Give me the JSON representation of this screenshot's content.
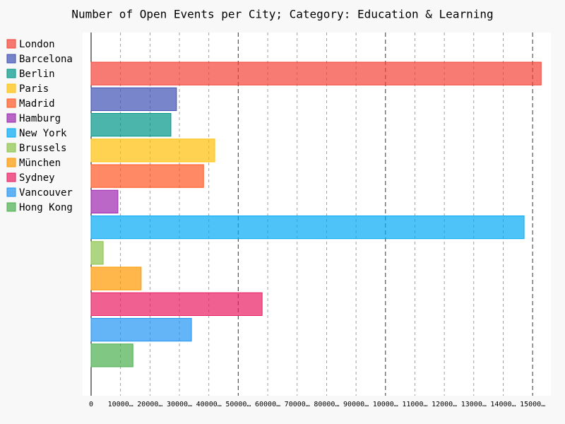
{
  "chart_data": {
    "type": "bar",
    "orientation": "horizontal",
    "title": "Number of Open Events per City; Category: Education & Learning",
    "categories": [
      "London",
      "Barcelona",
      "Berlin",
      "Paris",
      "Madrid",
      "Hamburg",
      "New York",
      "Brussels",
      "München",
      "Sydney",
      "Vancouver",
      "Hong Kong"
    ],
    "values": [
      152900,
      29000,
      27100,
      42000,
      38200,
      9100,
      147100,
      4100,
      17000,
      58100,
      34100,
      14200
    ],
    "colors": [
      "#F44336",
      "#3F51B5",
      "#009688",
      "#FFC107",
      "#FF5722",
      "#9C27B0",
      "#03A9F4",
      "#8BC34A",
      "#FF9800",
      "#E91E63",
      "#2196F3",
      "#4CAF50"
    ],
    "xlim": [
      0,
      155000
    ],
    "xticks": [
      0,
      {
        "value": 10000,
        "label": "10000…"
      },
      {
        "value": 20000,
        "label": "20000…"
      },
      {
        "value": 30000,
        "label": "30000…"
      },
      {
        "value": 40000,
        "label": "40000…"
      },
      {
        "value": 50000,
        "label": "50000…"
      },
      {
        "value": 60000,
        "label": "60000…"
      },
      {
        "value": 70000,
        "label": "70000…"
      },
      {
        "value": 80000,
        "label": "80000…"
      },
      {
        "value": 90000,
        "label": "90000…"
      },
      {
        "value": 100000,
        "label": "10000…"
      },
      {
        "value": 110000,
        "label": "11000…"
      },
      {
        "value": 120000,
        "label": "12000…"
      },
      {
        "value": 130000,
        "label": "13000…"
      },
      {
        "value": 140000,
        "label": "14000…"
      },
      {
        "value": 150000,
        "label": "15000…"
      }
    ],
    "major_ticks": [
      0,
      50000,
      100000,
      150000
    ],
    "grid": true,
    "legend": "left"
  }
}
